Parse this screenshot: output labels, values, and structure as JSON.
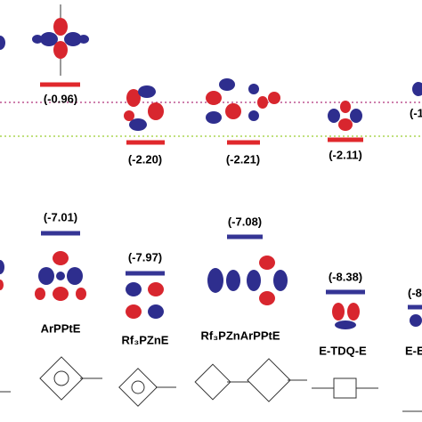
{
  "levels": [
    {
      "name": "ArPPtE",
      "lumo": "(-0.96)",
      "homo": "(-7.01)"
    },
    {
      "name": "Rf₃PZnE",
      "lumo": "(-2.20)",
      "homo": "(-7.97)"
    },
    {
      "name": "Rf₃PZnArPPtE",
      "lumo": "(-2.21)",
      "homo": "(-7.08)"
    },
    {
      "name": "E-TDQ-E",
      "lumo": "(-2.11)",
      "homo": "(-8.38)"
    },
    {
      "name": "E-E",
      "lumo": "(-1",
      "homo": "(-8"
    }
  ]
}
